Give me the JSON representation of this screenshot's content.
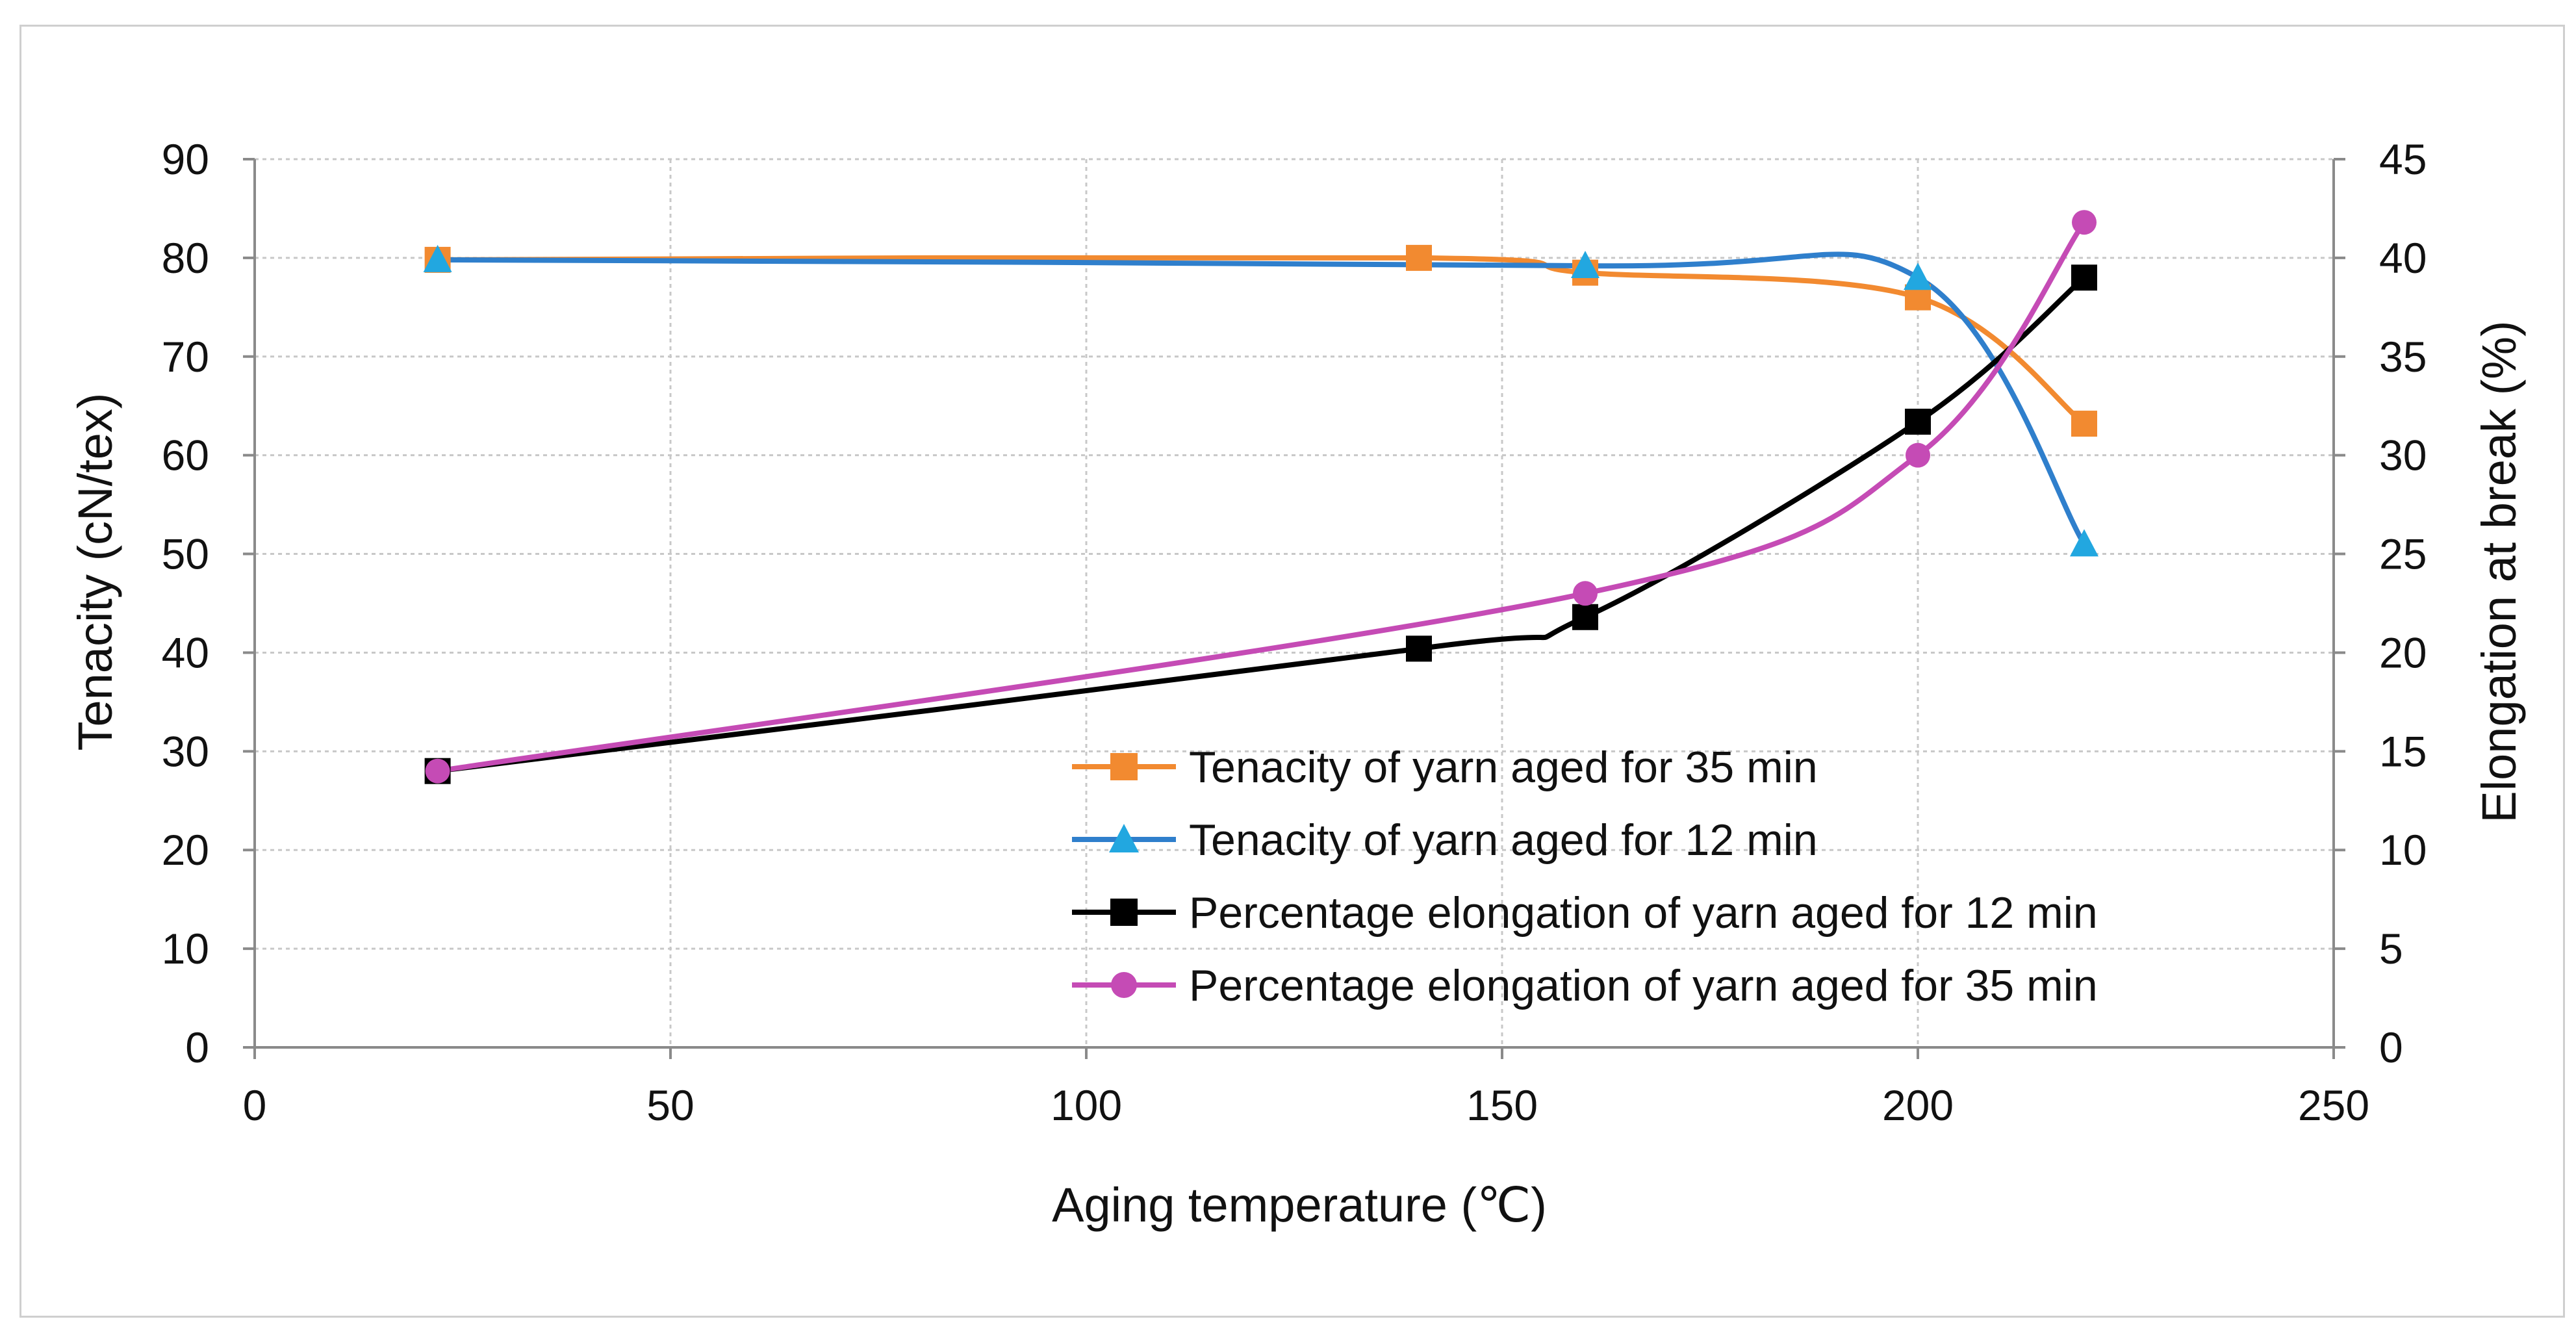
{
  "chart_data": {
    "type": "line",
    "title": "",
    "xlabel": "Aging temperature (℃)",
    "ylabel": "Tenacity (cN/tex)",
    "y2label": "Elongation at break (%)",
    "xlim": [
      0,
      250
    ],
    "ylim": [
      0,
      90
    ],
    "y2lim": [
      0,
      45
    ],
    "xticks": [
      "0",
      "50",
      "100",
      "150",
      "200",
      "250"
    ],
    "yticks": [
      "0",
      "10",
      "20",
      "30",
      "40",
      "50",
      "60",
      "70",
      "80",
      "90"
    ],
    "y2ticks": [
      "0",
      "5",
      "10",
      "15",
      "20",
      "25",
      "30",
      "35",
      "40",
      "45"
    ],
    "grid": true,
    "legend_position": "lower-right",
    "series": [
      {
        "name": "Tenacity of yarn aged for 35 min",
        "axis": "left",
        "marker": "square",
        "color": "#f28a30",
        "x": [
          22,
          140,
          160,
          200,
          220
        ],
        "y": [
          79.8,
          80.0,
          78.5,
          76.0,
          63.2
        ]
      },
      {
        "name": "Tenacity of yarn aged for 12 min",
        "axis": "left",
        "marker": "triangle",
        "color": "#2f7fcc",
        "markerColor": "#22a7e0",
        "x": [
          22,
          160,
          200,
          220
        ],
        "y": [
          79.8,
          79.2,
          78.0,
          51.0
        ]
      },
      {
        "name": "Percentage elongation of yarn aged for 12 min",
        "axis": "right",
        "marker": "square",
        "color": "#000000",
        "x": [
          22,
          140,
          160,
          200,
          220
        ],
        "y": [
          14.0,
          20.2,
          21.8,
          31.7,
          39.0
        ]
      },
      {
        "name": "Percentage elongation of yarn aged for 35 min",
        "axis": "right",
        "marker": "circle",
        "color": "#c54bb5",
        "x": [
          22,
          160,
          200,
          220
        ],
        "y": [
          14.0,
          23.0,
          30.0,
          41.8
        ]
      }
    ]
  }
}
